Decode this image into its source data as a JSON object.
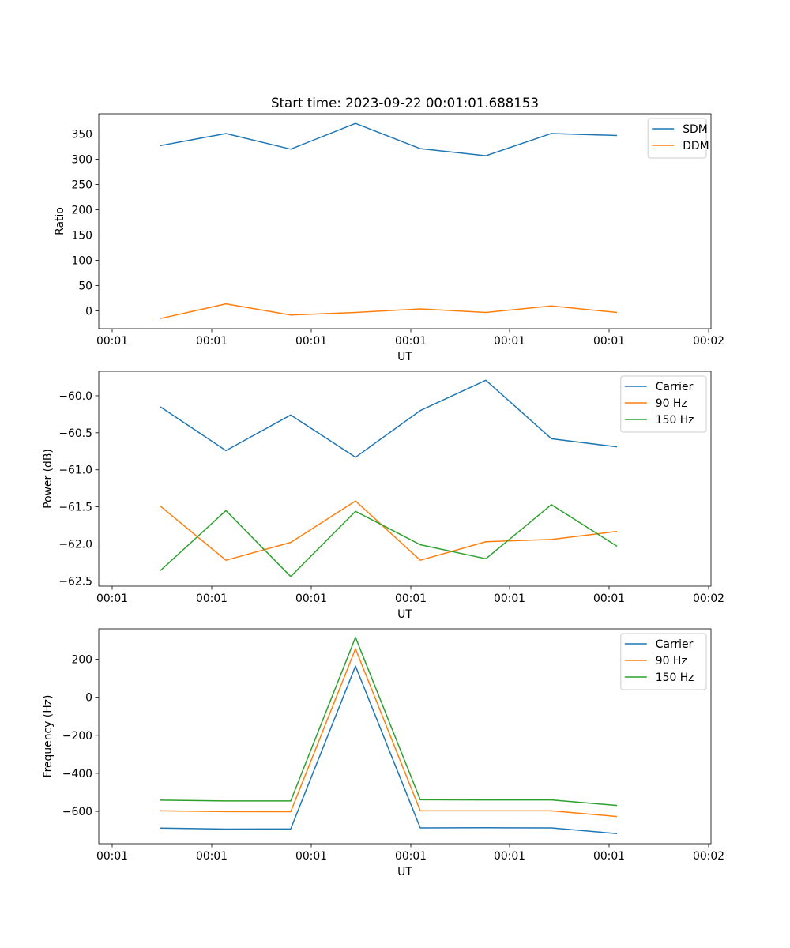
{
  "figure": {
    "title": "Start time: 2023-09-22 00:01:01.688153"
  },
  "chart_data": [
    {
      "type": "line",
      "title": "Start time: 2023-09-22 00:01:01.688153",
      "xlabel": "UT",
      "ylabel": "Ratio",
      "x_tick_labels": [
        "00:01",
        "00:01",
        "00:01",
        "00:01",
        "00:01",
        "00:01",
        "00:02"
      ],
      "ylim": [
        -35,
        390
      ],
      "y_ticks": [
        0,
        50,
        100,
        150,
        200,
        250,
        300,
        350
      ],
      "y_tick_labels": [
        "0",
        "50",
        "100",
        "150",
        "200",
        "250",
        "300",
        "350"
      ],
      "legend_position": "top-right",
      "series": [
        {
          "name": "SDM",
          "color": "#1f77b4",
          "values": [
            327,
            351,
            320,
            371,
            321,
            307,
            351,
            347
          ]
        },
        {
          "name": "DDM",
          "color": "#ff7f0e",
          "values": [
            -15,
            14,
            -8,
            -3,
            4,
            -3,
            10,
            -3
          ]
        }
      ]
    },
    {
      "type": "line",
      "title": "",
      "xlabel": "UT",
      "ylabel": "Power (dB)",
      "x_tick_labels": [
        "00:01",
        "00:01",
        "00:01",
        "00:01",
        "00:01",
        "00:01",
        "00:02"
      ],
      "ylim": [
        -62.57,
        -59.67
      ],
      "y_ticks": [
        -62.5,
        -62.0,
        -61.5,
        -61.0,
        -60.5,
        -60.0
      ],
      "y_tick_labels": [
        "−62.5",
        "−62.0",
        "−61.5",
        "−61.0",
        "−60.5",
        "−60.0"
      ],
      "legend_position": "top-right",
      "series": [
        {
          "name": "Carrier",
          "color": "#1f77b4",
          "values": [
            -60.15,
            -60.74,
            -60.26,
            -60.83,
            -60.2,
            -59.79,
            -60.58,
            -60.69
          ]
        },
        {
          "name": "90 Hz",
          "color": "#ff7f0e",
          "values": [
            -61.49,
            -62.22,
            -61.98,
            -61.42,
            -62.22,
            -61.97,
            -61.94,
            -61.83
          ]
        },
        {
          "name": "150 Hz",
          "color": "#2ca02c",
          "values": [
            -62.36,
            -61.55,
            -62.44,
            -61.56,
            -62.01,
            -62.2,
            -61.47,
            -62.03
          ]
        }
      ]
    },
    {
      "type": "line",
      "title": "",
      "xlabel": "UT",
      "ylabel": "Frequency (Hz)",
      "x_tick_labels": [
        "00:01",
        "00:01",
        "00:01",
        "00:01",
        "00:01",
        "00:01",
        "00:02"
      ],
      "ylim": [
        -770,
        360
      ],
      "y_ticks": [
        -600,
        -400,
        -200,
        0,
        200
      ],
      "y_tick_labels": [
        "−600",
        "−400",
        "−200",
        "0",
        "200"
      ],
      "legend_position": "top-right",
      "series": [
        {
          "name": "Carrier",
          "color": "#1f77b4",
          "values": [
            -688,
            -693,
            -692,
            164,
            -687,
            -686,
            -687,
            -717
          ]
        },
        {
          "name": "90 Hz",
          "color": "#ff7f0e",
          "values": [
            -597,
            -601,
            -602,
            255,
            -597,
            -597,
            -597,
            -627
          ]
        },
        {
          "name": "150 Hz",
          "color": "#2ca02c",
          "values": [
            -541,
            -545,
            -545,
            315,
            -539,
            -540,
            -540,
            -569
          ]
        }
      ]
    }
  ]
}
